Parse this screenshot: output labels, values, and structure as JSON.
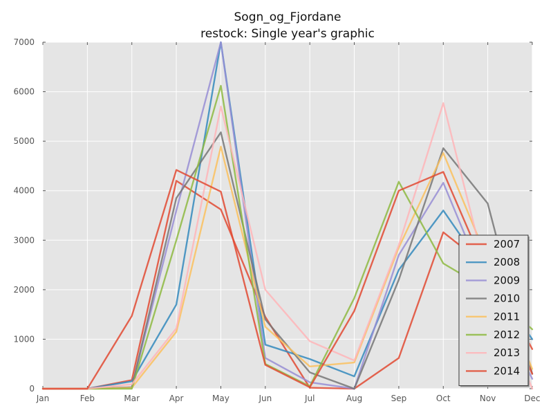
{
  "chart_data": {
    "type": "line",
    "title_line1": "Sogn_og_Fjordane",
    "title_line2": "restock: Single year's graphic",
    "xlabel": "",
    "ylabel": "",
    "categories": [
      "Jan",
      "Feb",
      "Mar",
      "Apr",
      "May",
      "Jun",
      "Jul",
      "Aug",
      "Sep",
      "Oct",
      "Nov",
      "Dec"
    ],
    "ylim": [
      0,
      7000
    ],
    "yticks": [
      0,
      1000,
      2000,
      3000,
      4000,
      5000,
      6000,
      7000
    ],
    "grid": true,
    "legend_position": "lower-right",
    "series": [
      {
        "name": "2007",
        "color": "#e24a33",
        "values": [
          0,
          0,
          175,
          4200,
          3620,
          1450,
          20,
          0,
          620,
          3160,
          2450,
          800
        ]
      },
      {
        "name": "2008",
        "color": "#348abd",
        "values": [
          0,
          0,
          150,
          1700,
          7000,
          890,
          600,
          250,
          2400,
          3600,
          2300,
          1000
        ]
      },
      {
        "name": "2009",
        "color": "#988ed5",
        "values": [
          0,
          0,
          30,
          3600,
          7000,
          620,
          130,
          0,
          2700,
          4160,
          2000,
          200
        ]
      },
      {
        "name": "2010",
        "color": "#777777",
        "values": [
          0,
          0,
          30,
          3850,
          5180,
          1400,
          330,
          0,
          2200,
          4860,
          3740,
          300
        ]
      },
      {
        "name": "2011",
        "color": "#fbc15e",
        "values": [
          0,
          0,
          20,
          1150,
          4890,
          1250,
          450,
          530,
          2850,
          4760,
          2600,
          400
        ]
      },
      {
        "name": "2012",
        "color": "#8eba42",
        "values": [
          0,
          0,
          0,
          3000,
          6120,
          500,
          50,
          1830,
          4180,
          2530,
          2000,
          1200
        ]
      },
      {
        "name": "2013",
        "color": "#ffb5b8",
        "values": [
          0,
          0,
          90,
          1220,
          5700,
          2000,
          960,
          570,
          2900,
          5770,
          2200,
          0
        ]
      },
      {
        "name": "2014",
        "color": "#e24a33",
        "values": [
          0,
          0,
          1470,
          4420,
          3980,
          480,
          30,
          1570,
          4000,
          4380,
          2300,
          300
        ]
      }
    ]
  }
}
